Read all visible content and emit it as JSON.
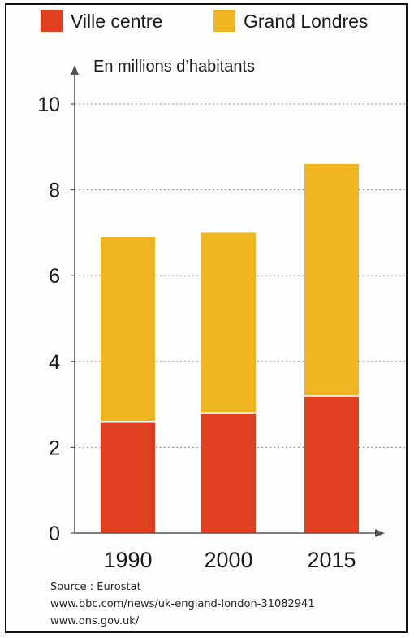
{
  "chart_data": {
    "type": "bar",
    "stacked": true,
    "categories": [
      "1990",
      "2000",
      "2015"
    ],
    "series": [
      {
        "name": "Ville centre",
        "values": [
          2.6,
          2.8,
          3.2
        ],
        "color": "#e0401f"
      },
      {
        "name": "Grand Londres",
        "values": [
          4.3,
          4.2,
          5.4
        ],
        "color": "#f0b621"
      }
    ],
    "title": "",
    "ylabel": "En millions d’habitants",
    "xlabel": "",
    "ylim": [
      0,
      10
    ],
    "yticks": [
      0,
      2,
      4,
      6,
      8,
      10
    ],
    "grid": true,
    "legend_position": "top"
  },
  "source": {
    "label": "Source : Eurostat",
    "lines": [
      "www.bbc.com/news/uk-england-london-31082941",
      "www.ons.gov.uk/"
    ]
  }
}
